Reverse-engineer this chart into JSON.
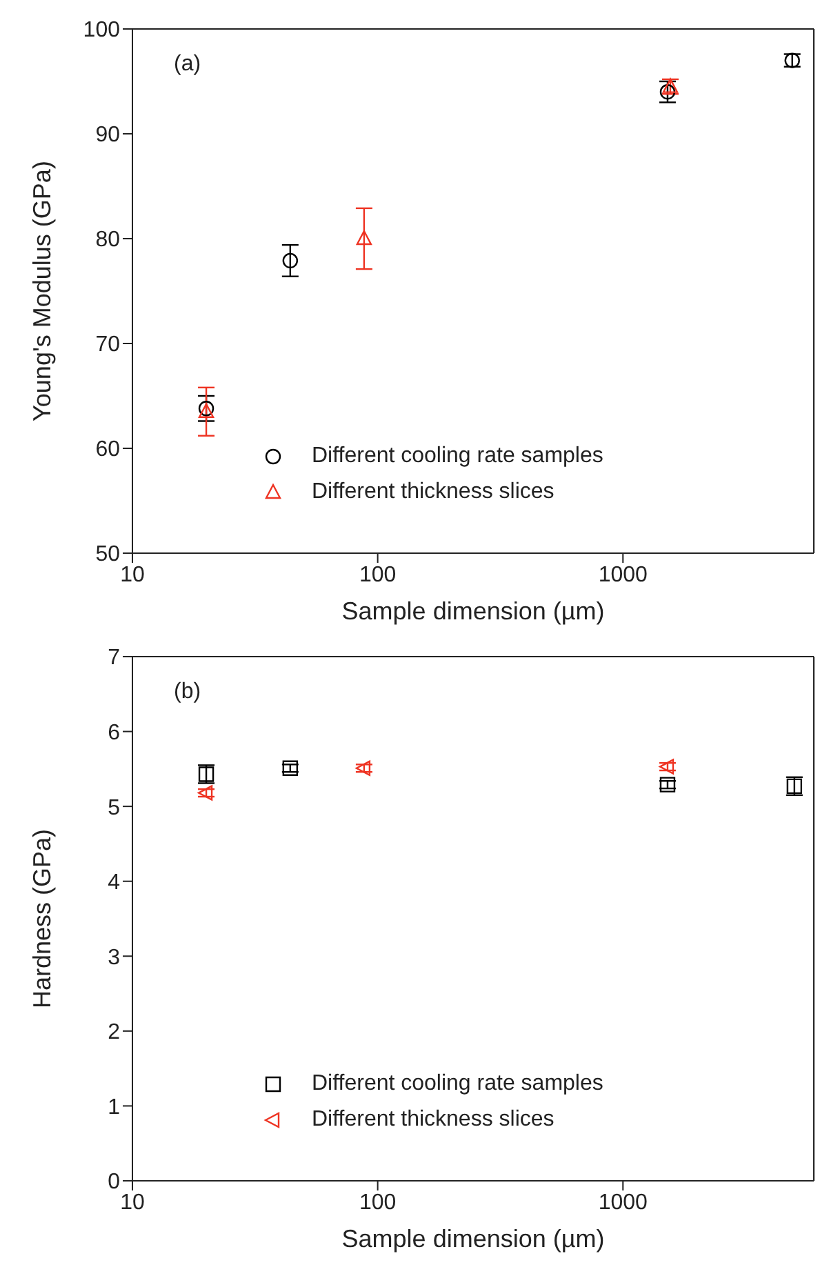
{
  "chart_data": [
    {
      "type": "scatter",
      "xlabel": "Sample dimension (µm)",
      "ylabel": "Young's Modulus (GPa)",
      "annotations": [
        "(a)"
      ],
      "log": "x",
      "xlim": [
        10,
        6000
      ],
      "xticks": [
        10,
        100,
        1000
      ],
      "ylim": [
        50,
        100
      ],
      "yticks": [
        50,
        60,
        70,
        80,
        90,
        100
      ],
      "legend": "bottom left",
      "series": [
        {
          "name": "Different cooling rate samples",
          "color": "#000000",
          "marker": "circle",
          "x": [
            20,
            44,
            1520,
            4900
          ],
          "values": [
            63.8,
            77.9,
            94.0,
            97.0
          ],
          "errors": [
            1.2,
            1.5,
            1.0,
            0.6
          ]
        },
        {
          "name": "Different thickness slices",
          "color": "#ee3322",
          "marker": "triangle",
          "x": [
            20,
            88,
            1560
          ],
          "values": [
            63.5,
            80.0,
            94.5
          ],
          "errors": [
            2.3,
            2.9,
            0.7
          ]
        }
      ]
    },
    {
      "type": "scatter",
      "xlabel": "Sample dimension (µm)",
      "ylabel": "Hardness (GPa)",
      "annotations": [
        "(b)"
      ],
      "log": "x",
      "xlim": [
        10,
        6000
      ],
      "xticks": [
        10,
        100,
        1000
      ],
      "ylim": [
        0,
        7
      ],
      "yticks": [
        0,
        1,
        2,
        3,
        4,
        5,
        6,
        7
      ],
      "legend": "bottom left",
      "series": [
        {
          "name": "Different cooling rate samples",
          "color": "#000000",
          "marker": "square",
          "x": [
            20,
            44,
            1520,
            5000
          ],
          "values": [
            5.43,
            5.51,
            5.29,
            5.27
          ],
          "errors": [
            0.12,
            0.05,
            0.05,
            0.12
          ]
        },
        {
          "name": "Different thickness slices",
          "color": "#ee3322",
          "marker": "triangle-left",
          "x": [
            20,
            88,
            1520
          ],
          "values": [
            5.18,
            5.51,
            5.53
          ],
          "errors": [
            0.05,
            0.05,
            0.05
          ]
        }
      ]
    }
  ]
}
